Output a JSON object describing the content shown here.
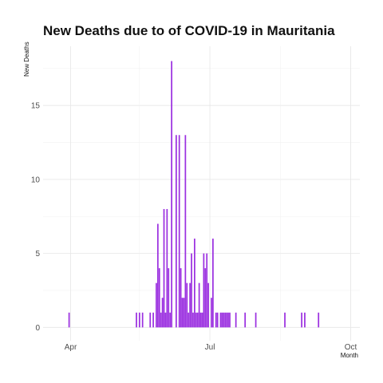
{
  "chart_data": {
    "type": "bar",
    "title": "New Deaths due to of COVID-19 in Mauritania",
    "xlabel": "Month",
    "ylabel": "New Deaths",
    "x_ticks": [
      "Apr",
      "Jul",
      "Oct"
    ],
    "y_ticks": [
      "0",
      "5",
      "10",
      "15"
    ],
    "xlim": [
      "2020-03-14",
      "2020-10-07"
    ],
    "ylim": [
      -0.9,
      19
    ],
    "bar_color": "#9b30e0",
    "grid": true,
    "x": [
      "2020-03-31",
      "2020-05-14",
      "2020-05-16",
      "2020-05-18",
      "2020-05-23",
      "2020-05-25",
      "2020-05-27",
      "2020-05-28",
      "2020-05-29",
      "2020-05-30",
      "2020-05-31",
      "2020-06-01",
      "2020-06-02",
      "2020-06-03",
      "2020-06-04",
      "2020-06-05",
      "2020-06-06",
      "2020-06-09",
      "2020-06-11",
      "2020-06-12",
      "2020-06-13",
      "2020-06-14",
      "2020-06-15",
      "2020-06-16",
      "2020-06-17",
      "2020-06-18",
      "2020-06-19",
      "2020-06-20",
      "2020-06-21",
      "2020-06-22",
      "2020-06-23",
      "2020-06-24",
      "2020-06-25",
      "2020-06-26",
      "2020-06-27",
      "2020-06-28",
      "2020-06-29",
      "2020-06-30",
      "2020-07-02",
      "2020-07-03",
      "2020-07-05",
      "2020-07-06",
      "2020-07-08",
      "2020-07-09",
      "2020-07-10",
      "2020-07-11",
      "2020-07-12",
      "2020-07-13",
      "2020-07-14",
      "2020-07-18",
      "2020-07-24",
      "2020-07-31",
      "2020-08-19",
      "2020-08-30",
      "2020-09-01",
      "2020-09-10"
    ],
    "values": [
      1,
      1,
      1,
      1,
      1,
      1,
      3,
      7,
      4,
      1,
      2,
      8,
      1,
      8,
      4,
      1,
      18,
      13,
      13,
      4,
      2,
      2,
      13,
      3,
      1,
      3,
      5,
      1,
      6,
      1,
      1,
      3,
      1,
      1,
      5,
      4,
      5,
      3,
      2,
      6,
      1,
      1,
      1,
      1,
      1,
      1,
      1,
      1,
      1,
      1,
      1,
      1,
      1,
      1,
      1,
      1
    ]
  }
}
